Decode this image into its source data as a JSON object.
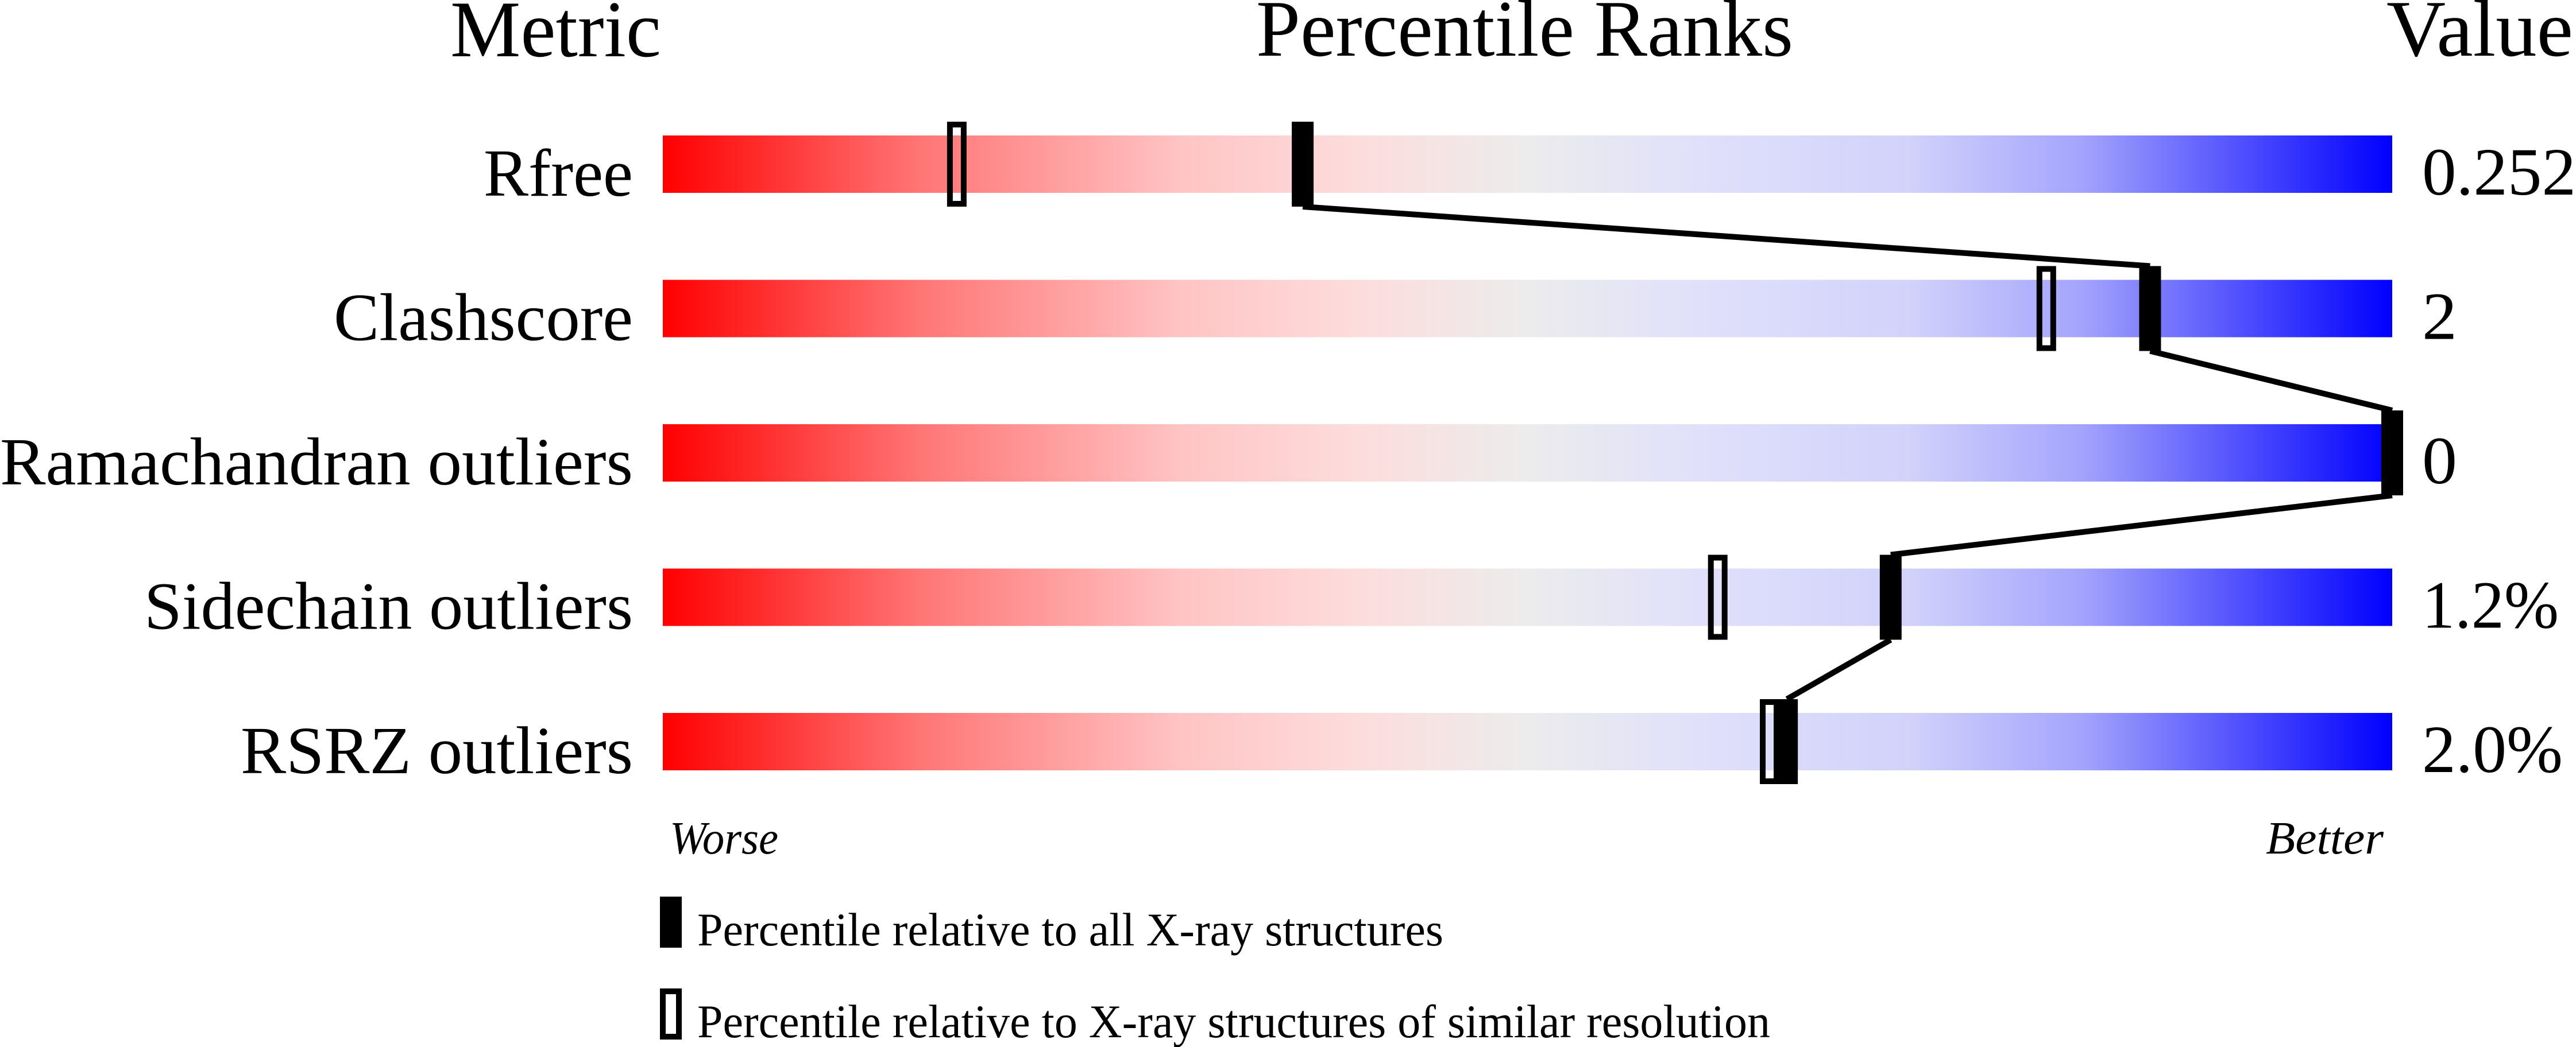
{
  "chart_data": {
    "type": "percentile-bar",
    "headers": {
      "metric": "Metric",
      "ranks": "Percentile Ranks",
      "value": "Value"
    },
    "xlim": [
      0,
      100
    ],
    "axis_labels": {
      "left": "Worse",
      "right": "Better"
    },
    "rows": [
      {
        "metric": "Rfree",
        "value": "0.252",
        "percentile_all": 37,
        "percentile_similar": 17
      },
      {
        "metric": "Clashscore",
        "value": "2",
        "percentile_all": 86,
        "percentile_similar": 80
      },
      {
        "metric": "Ramachandran outliers",
        "value": "0",
        "percentile_all": 100,
        "percentile_similar": 100
      },
      {
        "metric": "Sidechain outliers",
        "value": "1.2%",
        "percentile_all": 71,
        "percentile_similar": 61
      },
      {
        "metric": "RSRZ outliers",
        "value": "2.0%",
        "percentile_all": 65,
        "percentile_similar": 64
      }
    ],
    "legend": [
      {
        "marker": "filled",
        "label": "Percentile relative to all X-ray structures"
      },
      {
        "marker": "hollow",
        "label": "Percentile relative to X-ray structures of similar resolution"
      }
    ],
    "colors": {
      "worse": "#ff0000",
      "middle": "#ececec",
      "better": "#0000ff",
      "marker": "#000000"
    }
  }
}
